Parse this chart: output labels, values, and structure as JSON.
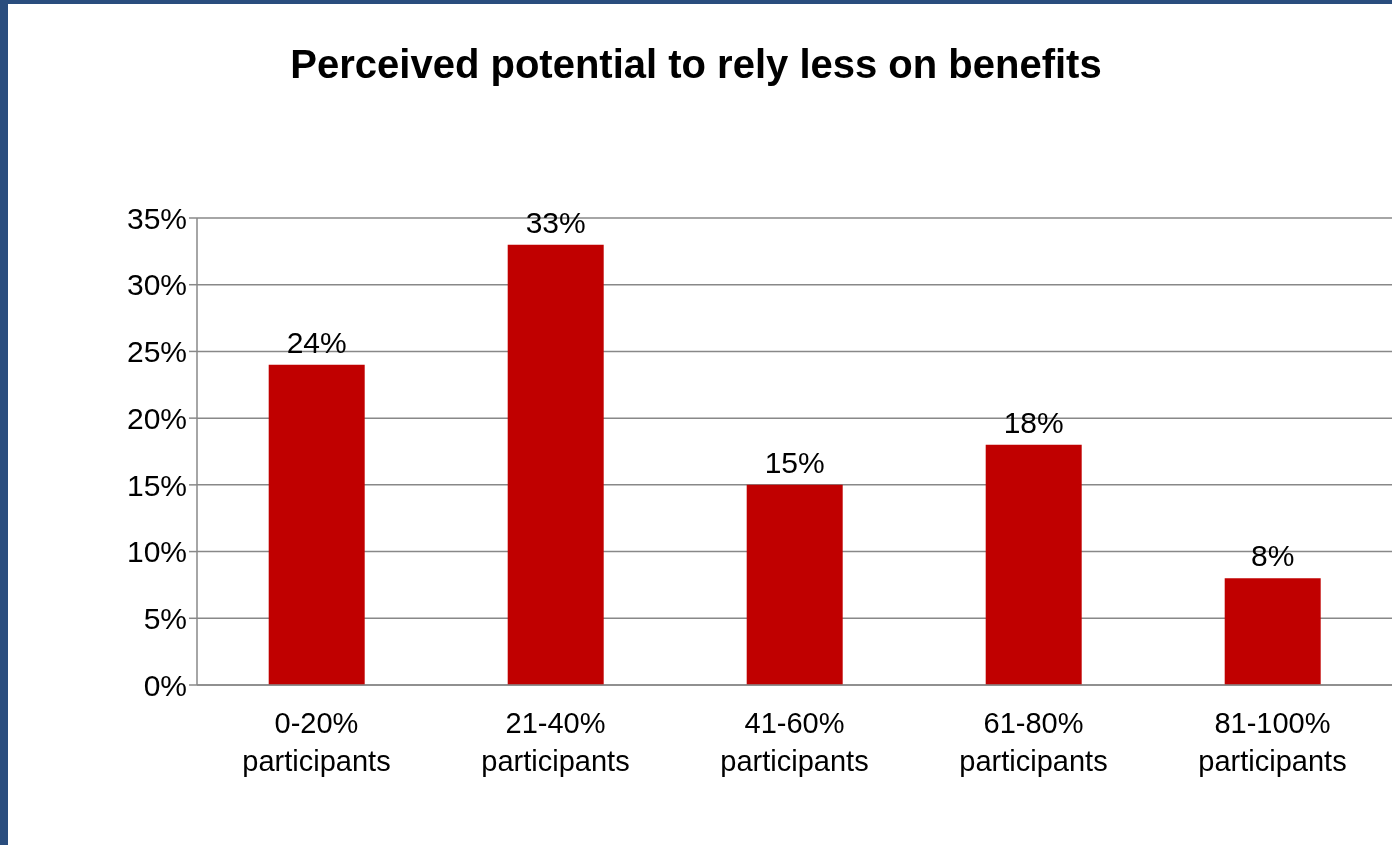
{
  "chart_data": {
    "type": "bar",
    "title": "Perceived potential to rely less on benefits",
    "categories": [
      "0-20% participants",
      "21-40% participants",
      "41-60% participants",
      "61-80% participants",
      "81-100% participants"
    ],
    "values": [
      24,
      33,
      15,
      18,
      8
    ],
    "value_labels": [
      "24%",
      "33%",
      "15%",
      "18%",
      "8%"
    ],
    "color": "#c00000",
    "ylim": [
      0,
      35
    ],
    "yticks": [
      {
        "value": 0,
        "label": "0%"
      },
      {
        "value": 5,
        "label": "5%"
      },
      {
        "value": 10,
        "label": "10%"
      },
      {
        "value": 15,
        "label": "15%"
      },
      {
        "value": 20,
        "label": "20%"
      },
      {
        "value": 25,
        "label": "25%"
      },
      {
        "value": 30,
        "label": "30%"
      },
      {
        "value": 35,
        "label": "35%"
      }
    ],
    "grid": "y",
    "legend": false
  }
}
